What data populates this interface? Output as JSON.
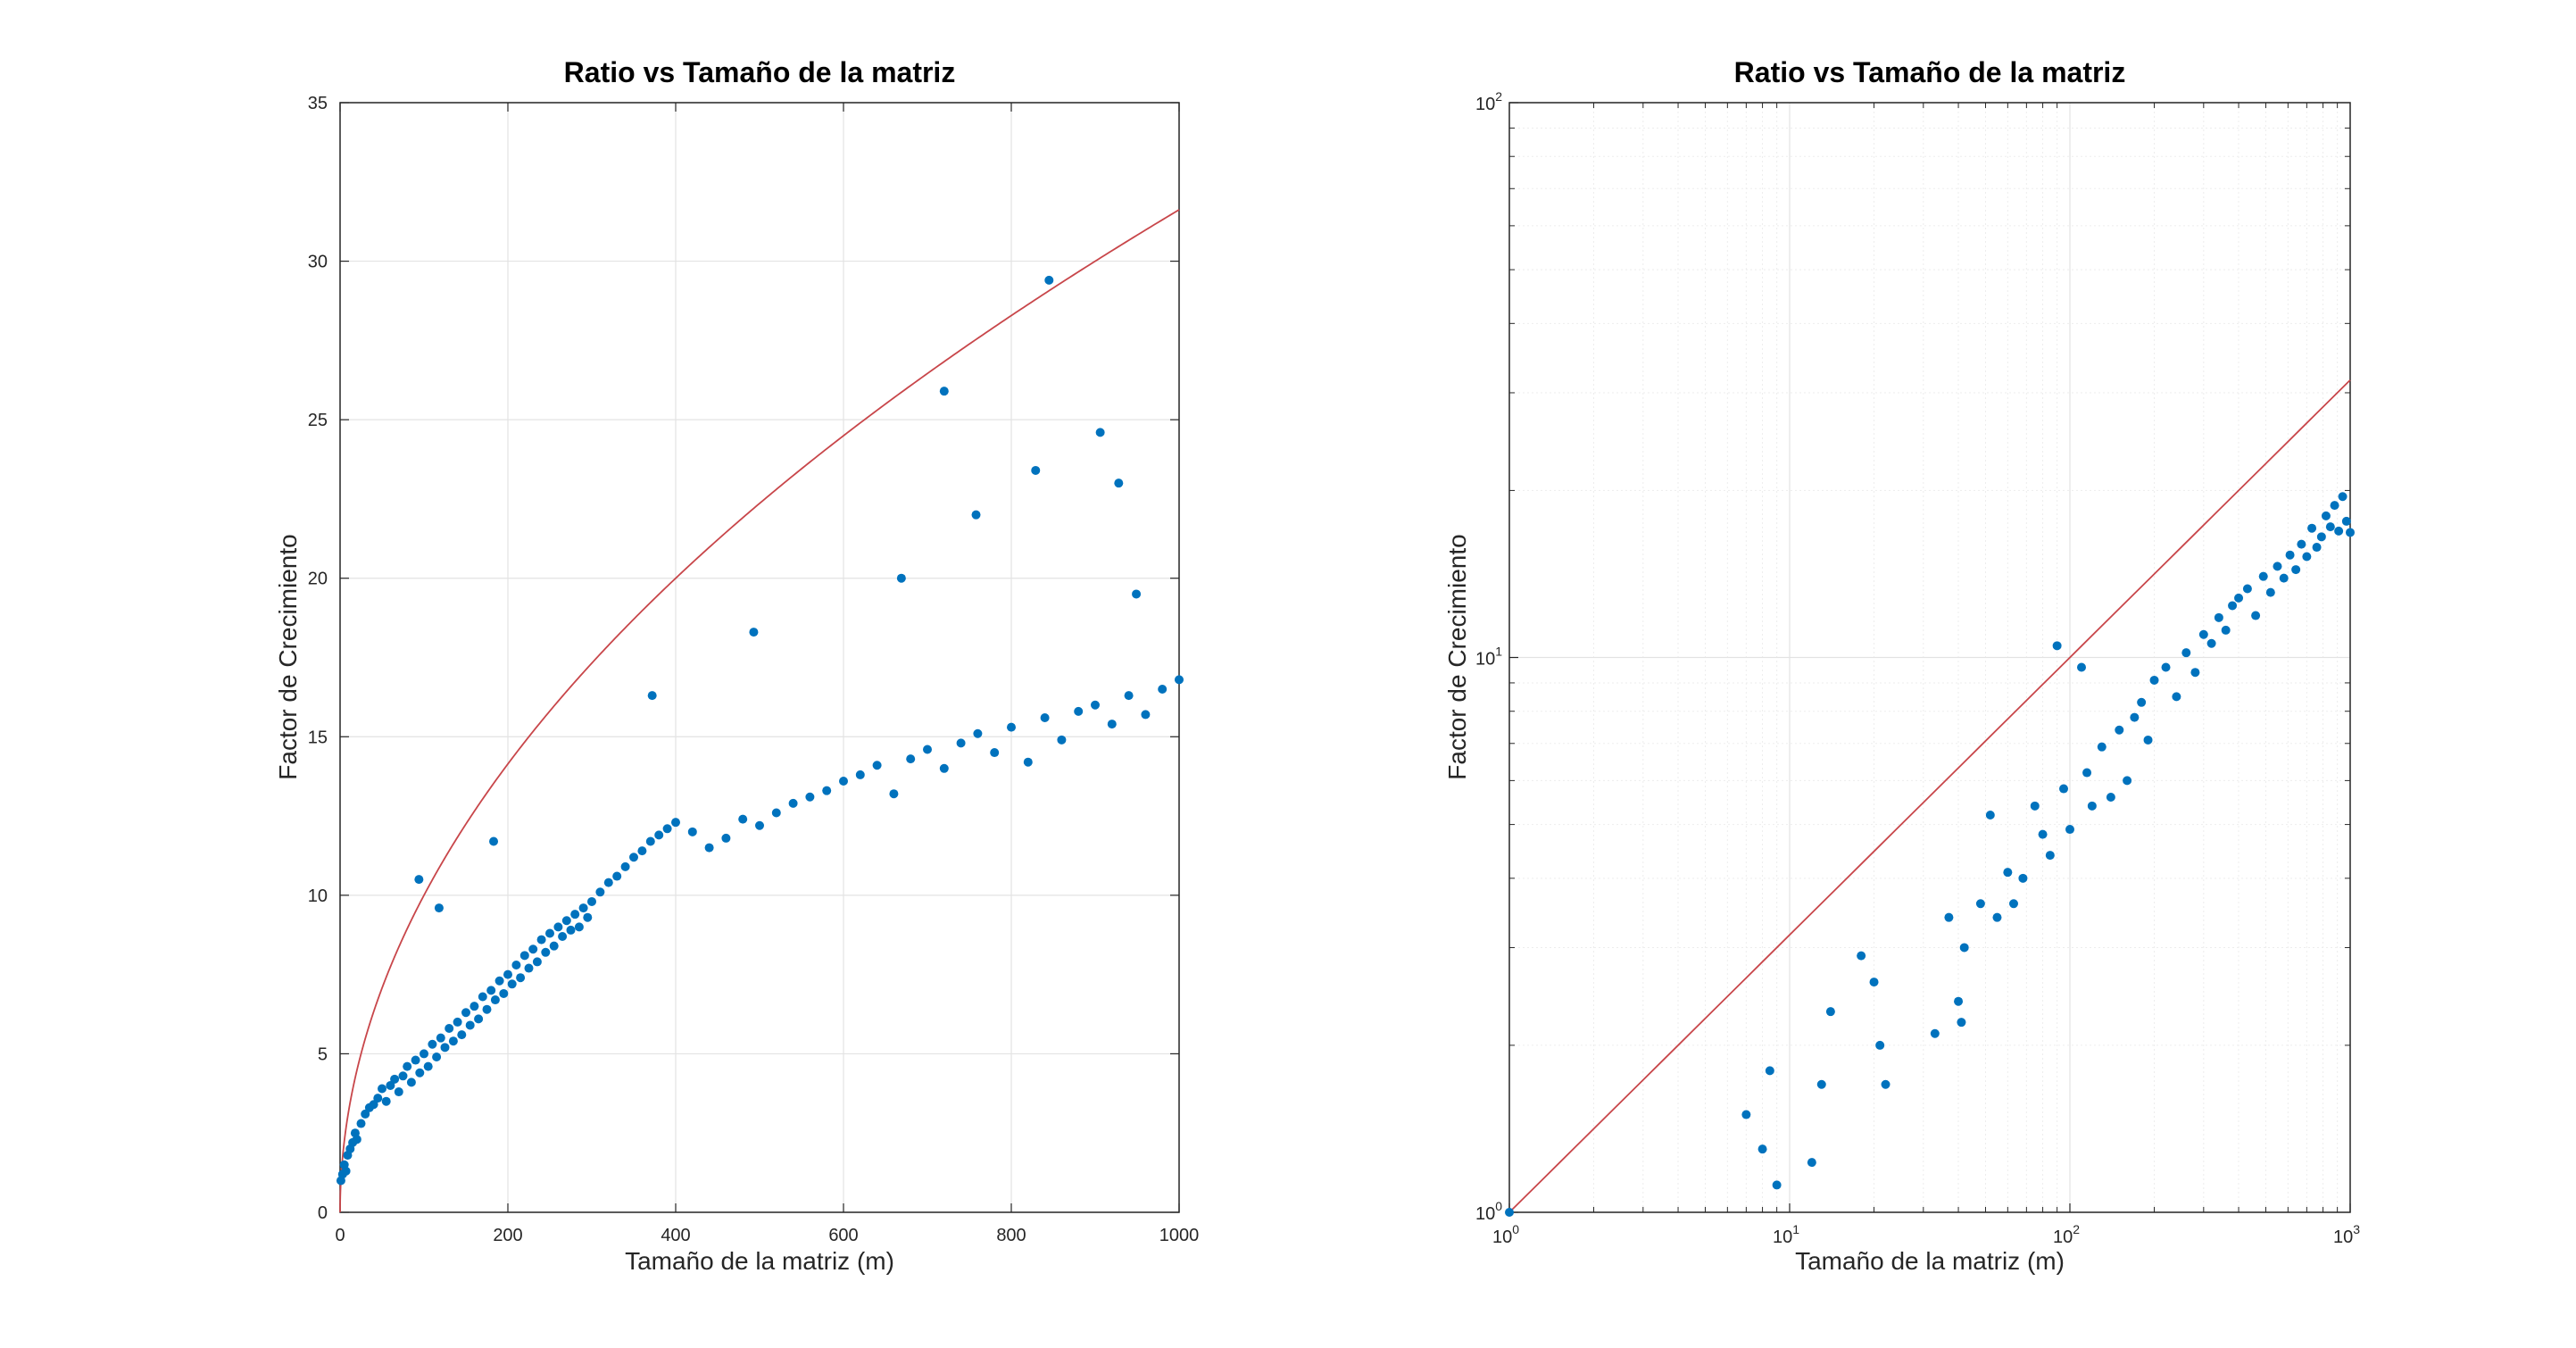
{
  "colors": {
    "points": "#0072BD",
    "curve": "#C8464A",
    "grid": "#E3E3E3",
    "axes": "#262626"
  },
  "chart_data": [
    {
      "type": "scatter",
      "title": "Ratio vs Tamaño de la matriz",
      "xlabel": "Tamaño de la matriz (m)",
      "ylabel": "Factor de Crecimiento",
      "xlim": [
        0,
        1000
      ],
      "ylim": [
        0,
        35
      ],
      "xscale": "linear",
      "yscale": "linear",
      "grid": true,
      "xticks": [
        0,
        200,
        400,
        600,
        800,
        1000
      ],
      "yticks": [
        0,
        5,
        10,
        15,
        20,
        25,
        30,
        35
      ],
      "xticklabels": [
        "0",
        "200",
        "400",
        "600",
        "800",
        "1000"
      ],
      "yticklabels": [
        "0",
        "5",
        "10",
        "15",
        "20",
        "25",
        "30",
        "35"
      ],
      "reference_curve": {
        "formula": "y = sqrt(x)",
        "color": "red"
      },
      "points_x": [
        1,
        3,
        5,
        7,
        9,
        12,
        15,
        18,
        20,
        25,
        30,
        35,
        40,
        45,
        50,
        55,
        60,
        65,
        70,
        75,
        80,
        85,
        90,
        95,
        100,
        105,
        110,
        115,
        120,
        125,
        130,
        135,
        140,
        145,
        150,
        155,
        160,
        165,
        170,
        175,
        180,
        185,
        190,
        195,
        200,
        205,
        210,
        215,
        220,
        225,
        230,
        235,
        240,
        245,
        250,
        255,
        260,
        265,
        270,
        275,
        280,
        285,
        290,
        295,
        300,
        310,
        320,
        330,
        340,
        350,
        360,
        370,
        380,
        390,
        400,
        420,
        440,
        460,
        480,
        500,
        520,
        540,
        560,
        580,
        600,
        620,
        640,
        660,
        680,
        700,
        720,
        740,
        760,
        780,
        800,
        820,
        840,
        860,
        880,
        900,
        920,
        940,
        960,
        980,
        1000,
        94,
        118,
        183,
        372,
        493,
        669,
        720,
        758,
        829,
        845,
        906,
        928,
        949
      ],
      "points_y": [
        1.0,
        1.2,
        1.5,
        1.3,
        1.8,
        2.0,
        2.2,
        2.5,
        2.3,
        2.8,
        3.1,
        3.3,
        3.4,
        3.6,
        3.9,
        3.5,
        4.0,
        4.2,
        3.8,
        4.3,
        4.6,
        4.1,
        4.8,
        4.4,
        5.0,
        4.6,
        5.3,
        4.9,
        5.5,
        5.2,
        5.8,
        5.4,
        6.0,
        5.6,
        6.3,
        5.9,
        6.5,
        6.1,
        6.8,
        6.4,
        7.0,
        6.7,
        7.3,
        6.9,
        7.5,
        7.2,
        7.8,
        7.4,
        8.1,
        7.7,
        8.3,
        7.9,
        8.6,
        8.2,
        8.8,
        8.4,
        9.0,
        8.7,
        9.2,
        8.9,
        9.4,
        9.0,
        9.6,
        9.3,
        9.8,
        10.1,
        10.4,
        10.6,
        10.9,
        11.2,
        11.4,
        11.7,
        11.9,
        12.1,
        12.3,
        12.0,
        11.5,
        11.8,
        12.4,
        12.2,
        12.6,
        12.9,
        13.1,
        13.3,
        13.6,
        13.8,
        14.1,
        13.2,
        14.3,
        14.6,
        14.0,
        14.8,
        15.1,
        14.5,
        15.3,
        14.2,
        15.6,
        14.9,
        15.8,
        16.0,
        15.4,
        16.3,
        15.7,
        16.5,
        16.8,
        10.5,
        9.6,
        11.7,
        16.3,
        18.3,
        20.0,
        25.9,
        22.0,
        23.4,
        29.4,
        24.6,
        23.0,
        19.5
      ]
    },
    {
      "type": "scatter",
      "title": "Ratio vs Tamaño de la matriz",
      "xlabel": "Tamaño de la matriz (m)",
      "ylabel": "Factor de Crecimiento",
      "xlim": [
        1,
        1000
      ],
      "ylim": [
        1,
        100
      ],
      "xscale": "log",
      "yscale": "log",
      "grid": true,
      "xticks": [
        1,
        10,
        100,
        1000
      ],
      "yticks": [
        1,
        10,
        100
      ],
      "xtick_base": "10",
      "xtick_exponents": [
        "0",
        "1",
        "2",
        "3"
      ],
      "ytick_base": "10",
      "ytick_exponents": [
        "0",
        "1",
        "2"
      ],
      "reference_curve": {
        "formula": "y = sqrt(x)",
        "color": "red"
      },
      "points_x": [
        1,
        7,
        8,
        8.5,
        9,
        12,
        13,
        14,
        18,
        20,
        21,
        22,
        33,
        37,
        40,
        41,
        42,
        48,
        52,
        55,
        60,
        63,
        68,
        75,
        80,
        85,
        90,
        95,
        100,
        110,
        115,
        120,
        130,
        140,
        150,
        160,
        170,
        180,
        190,
        200,
        220,
        240,
        260,
        280,
        300,
        320,
        340,
        360,
        380,
        400,
        430,
        460,
        490,
        520,
        550,
        580,
        610,
        640,
        670,
        700,
        730,
        760,
        790,
        820,
        850,
        880,
        910,
        940,
        970,
        1000
      ],
      "points_y": [
        1.0,
        1.5,
        1.3,
        1.8,
        1.12,
        1.23,
        1.7,
        2.3,
        2.9,
        2.6,
        2.0,
        1.7,
        2.1,
        3.4,
        2.4,
        2.2,
        3.0,
        3.6,
        5.2,
        3.4,
        4.1,
        3.6,
        4.0,
        5.4,
        4.8,
        4.4,
        10.5,
        5.8,
        4.9,
        9.6,
        6.2,
        5.4,
        6.9,
        5.6,
        7.4,
        6.0,
        7.8,
        8.3,
        7.1,
        9.1,
        9.6,
        8.5,
        10.2,
        9.4,
        11.0,
        10.6,
        11.8,
        11.2,
        12.4,
        12.8,
        13.3,
        11.9,
        14.0,
        13.1,
        14.6,
        13.9,
        15.3,
        14.4,
        16.0,
        15.2,
        17.1,
        15.8,
        16.5,
        18.0,
        17.2,
        18.8,
        16.9,
        19.5,
        17.6,
        16.8
      ]
    }
  ]
}
